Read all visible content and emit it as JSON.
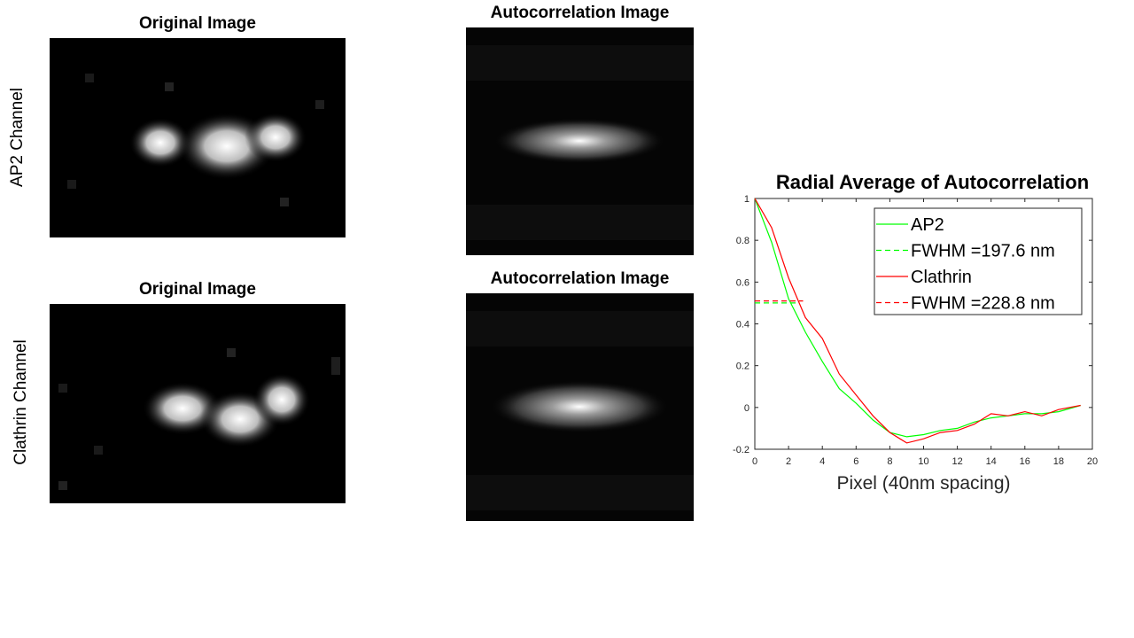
{
  "panels": {
    "original_title_1": "Original Image",
    "autocorr_title_1": "Autocorrelation Image",
    "original_title_2": "Original Image",
    "autocorr_title_2": "Autocorrelation Image",
    "row_label_1": "AP2 Channel",
    "row_label_2": "Clathrin Channel"
  },
  "chart_data": {
    "type": "line",
    "title": "Radial Average of Autocorrelation",
    "xlabel": "Pixel (40nm spacing)",
    "ylabel": "",
    "xlim": [
      0,
      20
    ],
    "ylim": [
      -0.2,
      1
    ],
    "xticks": [
      "0",
      "2",
      "4",
      "6",
      "8",
      "10",
      "12",
      "14",
      "16",
      "18",
      "20"
    ],
    "yticks": [
      "-0.2",
      "0",
      "0.2",
      "0.4",
      "0.6",
      "0.8",
      "1"
    ],
    "grid": false,
    "legend_position": "top-right",
    "series": [
      {
        "name": "AP2",
        "color": "#00ff00",
        "style": "solid",
        "x": [
          0,
          1,
          2,
          3,
          4,
          5,
          6,
          7,
          8,
          9,
          10,
          11,
          12,
          13,
          14,
          15,
          16,
          17,
          18,
          19.3
        ],
        "y": [
          1.0,
          0.79,
          0.52,
          0.36,
          0.22,
          0.09,
          0.02,
          -0.06,
          -0.12,
          -0.14,
          -0.13,
          -0.11,
          -0.1,
          -0.07,
          -0.05,
          -0.04,
          -0.03,
          -0.03,
          -0.02,
          0.01
        ]
      },
      {
        "name": "FWHM =197.6 nm",
        "color": "#00ff00",
        "style": "dashed",
        "x": [
          0,
          2.47
        ],
        "y": [
          0.5,
          0.5
        ]
      },
      {
        "name": "Clathrin",
        "color": "#ff0000",
        "style": "solid",
        "x": [
          0,
          1,
          2,
          3,
          4,
          5,
          6,
          7,
          8,
          9,
          10,
          11,
          12,
          13,
          14,
          15,
          16,
          17,
          18,
          19.3
        ],
        "y": [
          1.0,
          0.86,
          0.62,
          0.43,
          0.33,
          0.16,
          0.06,
          -0.04,
          -0.12,
          -0.17,
          -0.15,
          -0.12,
          -0.11,
          -0.08,
          -0.03,
          -0.04,
          -0.02,
          -0.04,
          -0.01,
          0.01
        ]
      },
      {
        "name": "FWHM =228.8 nm",
        "color": "#ff0000",
        "style": "dashed",
        "x": [
          0,
          2.86
        ],
        "y": [
          0.51,
          0.51
        ]
      }
    ]
  }
}
